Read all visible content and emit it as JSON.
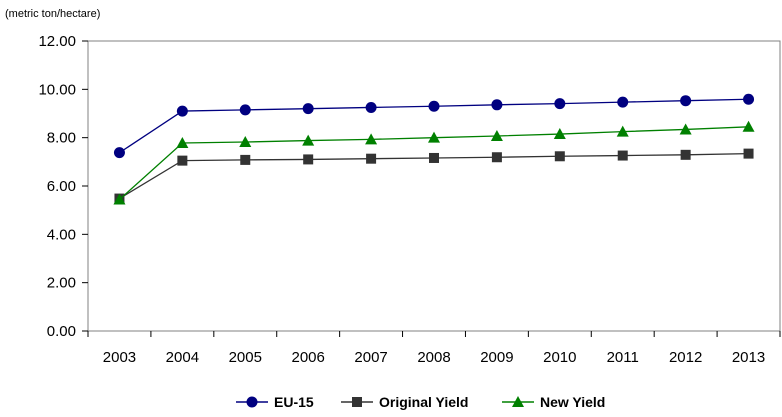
{
  "chart_data": {
    "type": "line",
    "units_label": "(metric ton/hectare)",
    "title": "",
    "xlabel": "",
    "ylabel": "",
    "categories": [
      "2003",
      "2004",
      "2005",
      "2006",
      "2007",
      "2008",
      "2009",
      "2010",
      "2011",
      "2012",
      "2013"
    ],
    "ylim": [
      0,
      12
    ],
    "yticks": [
      "0.00",
      "2.00",
      "4.00",
      "6.00",
      "8.00",
      "10.00",
      "12.00"
    ],
    "grid": false,
    "legend_position": "bottom",
    "series": [
      {
        "name": "EU-15",
        "color": "#000080",
        "marker": "circle",
        "values": [
          7.38,
          9.1,
          9.15,
          9.2,
          9.25,
          9.3,
          9.36,
          9.41,
          9.47,
          9.53,
          9.59
        ]
      },
      {
        "name": "Original Yield",
        "color": "#333333",
        "marker": "square",
        "values": [
          5.48,
          7.05,
          7.08,
          7.1,
          7.13,
          7.16,
          7.19,
          7.23,
          7.26,
          7.29,
          7.34
        ]
      },
      {
        "name": "New Yield",
        "color": "#008000",
        "marker": "triangle",
        "values": [
          5.44,
          7.78,
          7.82,
          7.88,
          7.93,
          8.0,
          8.07,
          8.15,
          8.25,
          8.34,
          8.45
        ]
      }
    ]
  }
}
